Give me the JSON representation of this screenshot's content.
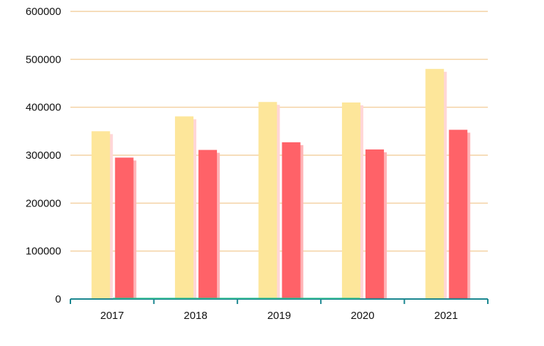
{
  "chart_data": {
    "type": "bar",
    "categories": [
      "2017",
      "2018",
      "2019",
      "2020",
      "2021"
    ],
    "series": [
      {
        "values": [
          350000,
          381000,
          411000,
          410000,
          480000
        ]
      },
      {
        "values": [
          295000,
          311000,
          327000,
          312000,
          353000
        ]
      }
    ],
    "ylim": [
      0,
      600000
    ],
    "yticks": [
      "0",
      "100000",
      "200000",
      "300000",
      "400000",
      "500000",
      "600000"
    ],
    "grid": true,
    "legend": "none"
  },
  "colors": {
    "series": [
      "#fde69a",
      "#ff6268"
    ],
    "shadows": [
      "#ffd6d7",
      "#ffb3b6"
    ],
    "grid": "#f4d2a4",
    "axis": "#19868f",
    "baseline_highlight": "#2ec08e"
  }
}
